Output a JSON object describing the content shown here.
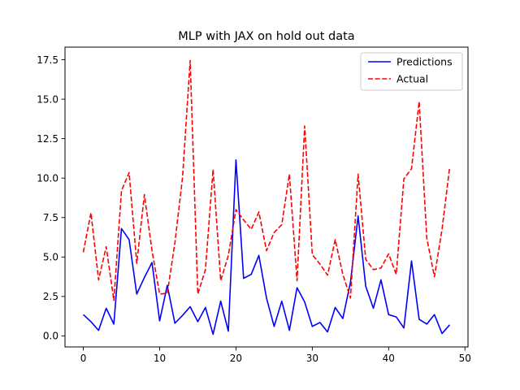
{
  "chart_data": {
    "type": "line",
    "title": "MLP with JAX on hold out data",
    "xlabel": "",
    "ylabel": "",
    "xlim": [
      -2.4,
      50.4
    ],
    "ylim": [
      -0.7,
      18.3
    ],
    "x_ticks": [
      0,
      10,
      20,
      30,
      40,
      50
    ],
    "y_ticks": [
      0.0,
      2.5,
      5.0,
      7.5,
      10.0,
      12.5,
      15.0,
      17.5
    ],
    "y_tick_labels": [
      "0.0",
      "2.5",
      "5.0",
      "7.5",
      "10.0",
      "12.5",
      "15.0",
      "17.5"
    ],
    "grid": false,
    "legend": "top-right",
    "x": [
      0,
      1,
      2,
      3,
      4,
      5,
      6,
      7,
      8,
      9,
      10,
      11,
      12,
      13,
      14,
      15,
      16,
      17,
      18,
      19,
      20,
      21,
      22,
      23,
      24,
      25,
      26,
      27,
      28,
      29,
      30,
      31,
      32,
      33,
      34,
      35,
      36,
      37,
      38,
      39,
      40,
      41,
      42,
      43,
      44,
      45,
      46,
      47,
      48
    ],
    "series": [
      {
        "name": "Predictions",
        "color": "#0000ff",
        "style": "solid",
        "values": [
          1.35,
          0.9,
          0.35,
          1.75,
          0.75,
          6.8,
          6.1,
          2.65,
          3.7,
          4.65,
          0.95,
          3.2,
          0.8,
          1.3,
          1.85,
          0.9,
          1.8,
          0.1,
          2.2,
          0.3,
          11.15,
          3.65,
          3.9,
          5.1,
          2.4,
          0.6,
          2.2,
          0.35,
          3.05,
          2.15,
          0.6,
          0.85,
          0.25,
          1.8,
          1.1,
          3.4,
          7.6,
          3.15,
          1.75,
          3.55,
          1.35,
          1.2,
          0.5,
          4.75,
          1.05,
          0.75,
          1.35,
          0.15,
          0.7
        ]
      },
      {
        "name": "Actual",
        "color": "#ff0000",
        "style": "dashed",
        "values": [
          5.3,
          7.8,
          3.55,
          5.65,
          2.25,
          9.2,
          10.35,
          4.6,
          8.95,
          5.4,
          2.65,
          2.7,
          5.9,
          10.05,
          17.45,
          2.65,
          4.2,
          10.55,
          3.5,
          5.1,
          8.0,
          7.35,
          6.75,
          7.85,
          5.4,
          6.55,
          7.05,
          10.25,
          3.5,
          13.3,
          5.15,
          4.55,
          3.85,
          6.1,
          3.9,
          2.4,
          10.25,
          4.85,
          4.2,
          4.3,
          5.2,
          3.9,
          9.95,
          10.6,
          14.85,
          6.2,
          3.75,
          6.75,
          10.7
        ]
      }
    ]
  }
}
